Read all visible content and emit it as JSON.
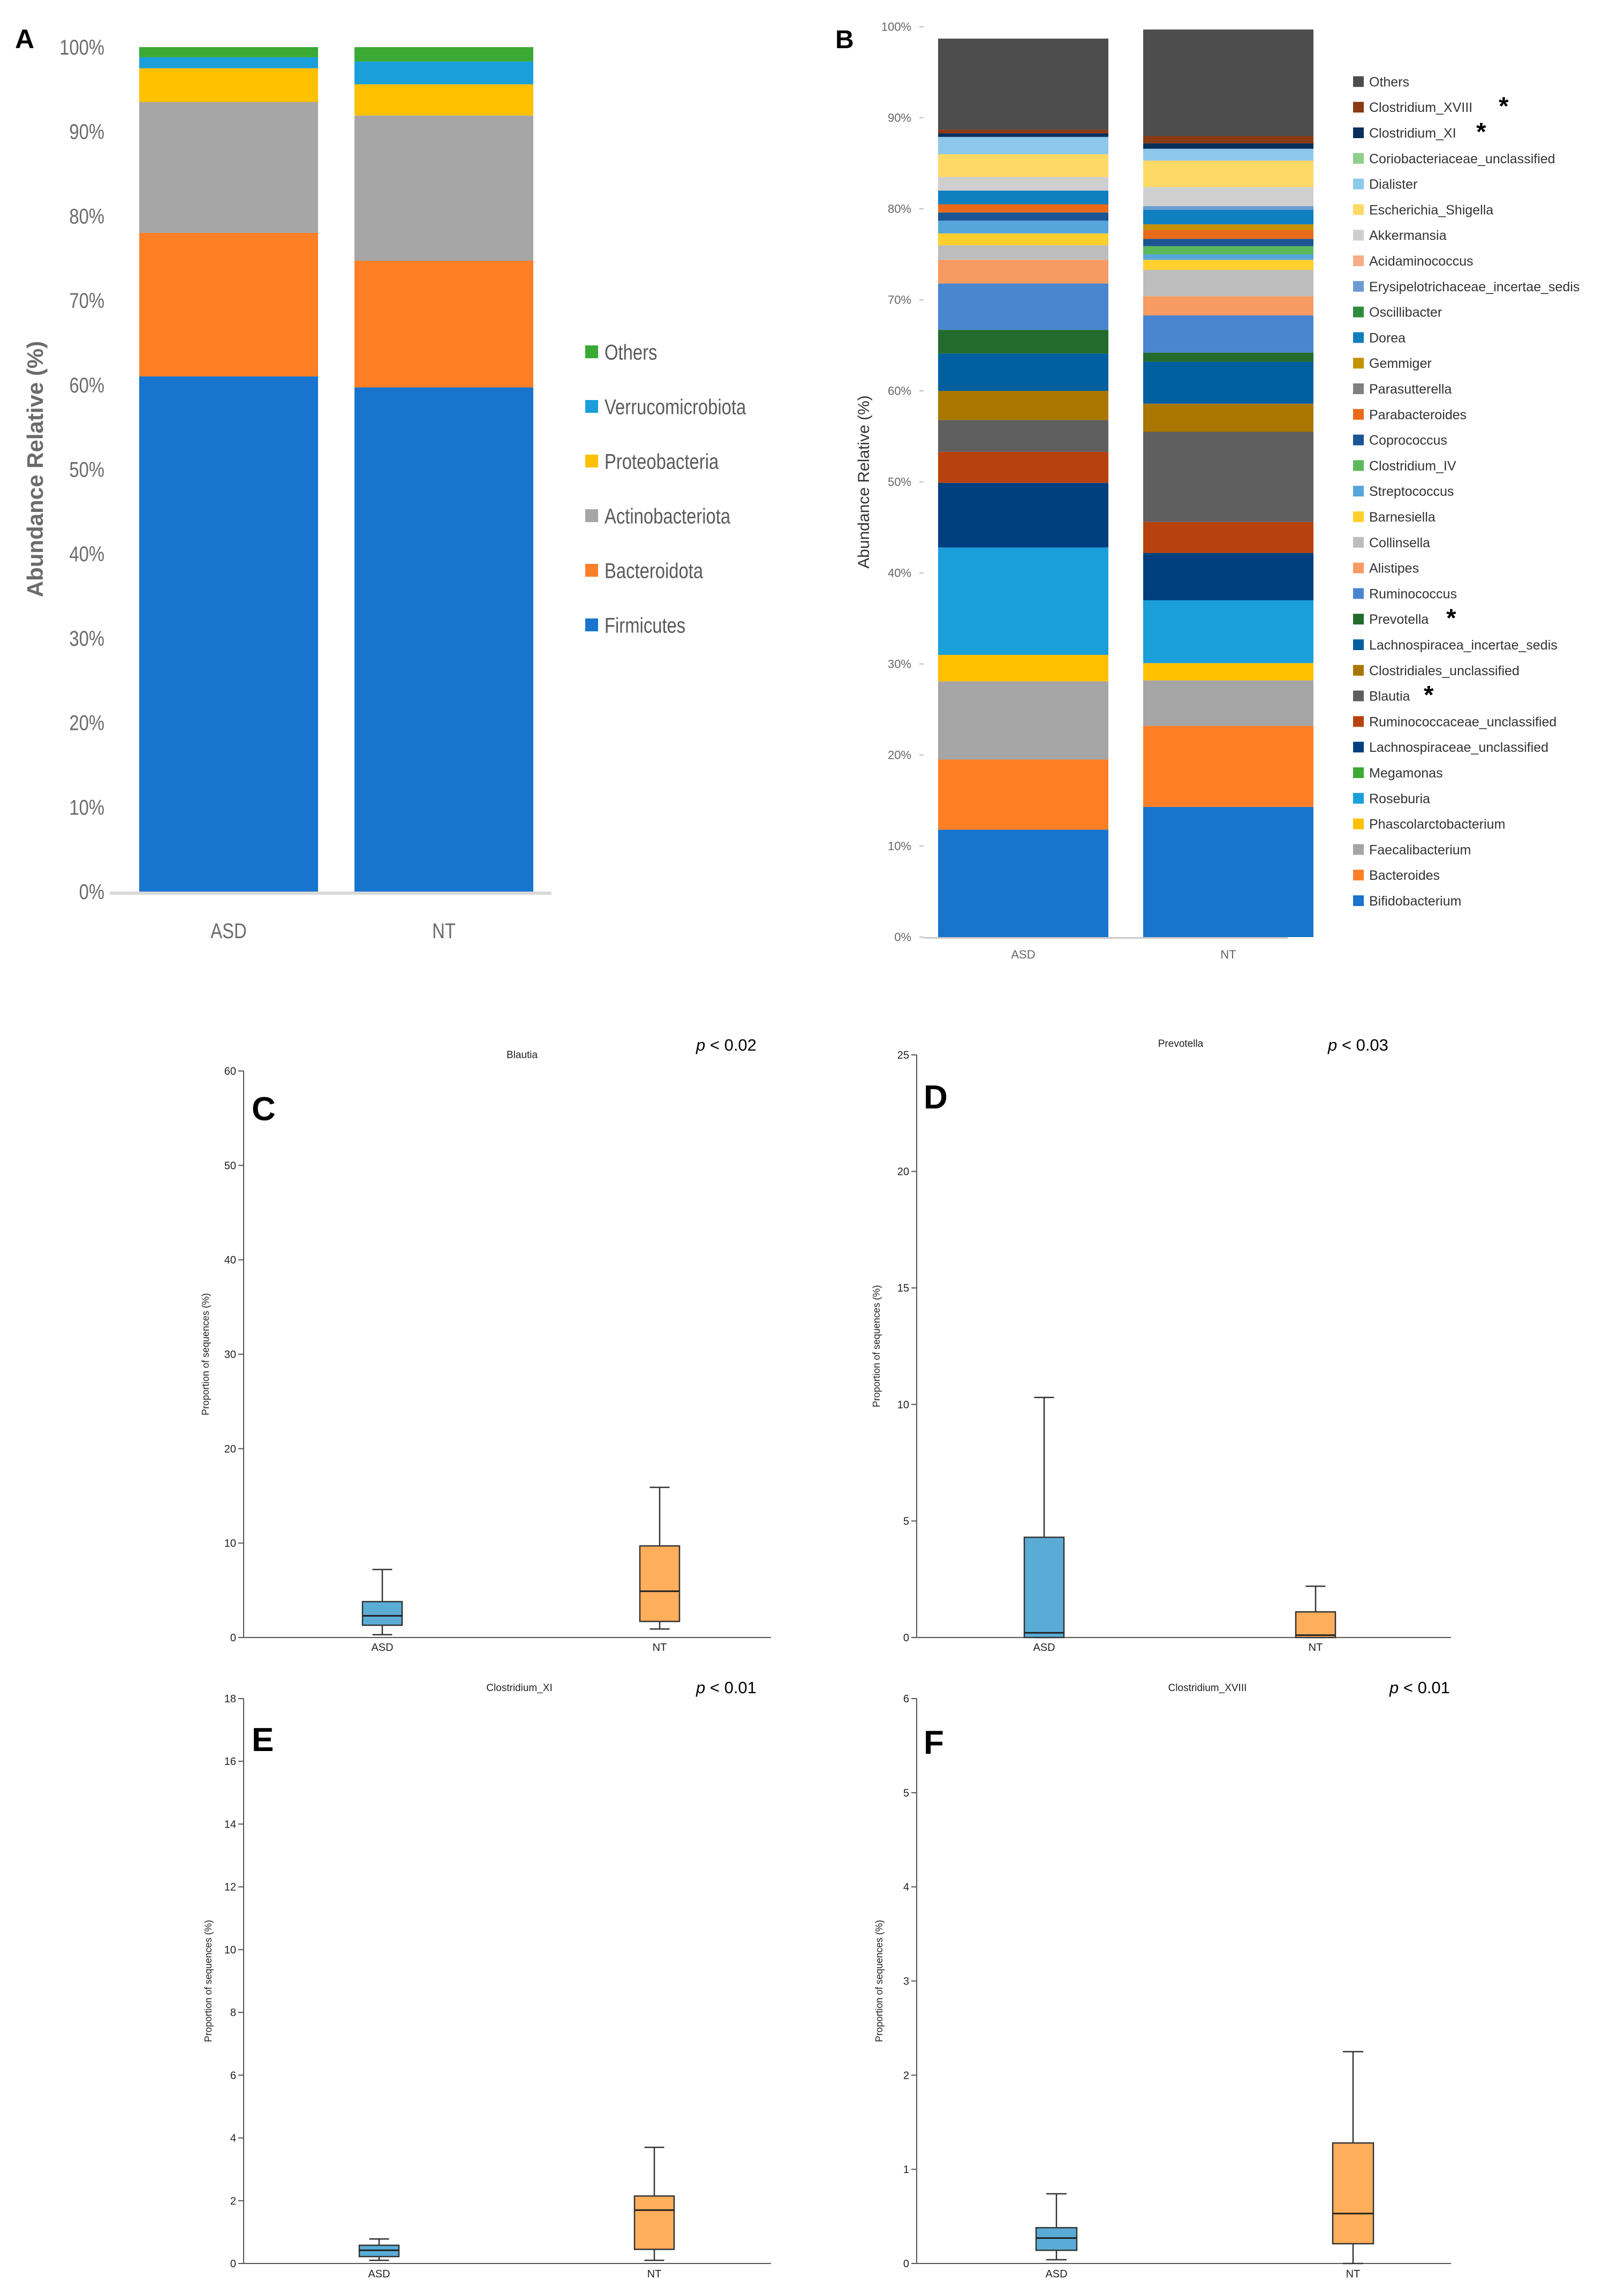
{
  "chart_data": [
    {
      "id": "A",
      "panel_label": "A",
      "type": "bar",
      "stacked": true,
      "ylabel": "Abundance Relative (%)",
      "ylim": [
        0,
        100
      ],
      "yticks": [
        0,
        10,
        20,
        30,
        40,
        50,
        60,
        70,
        80,
        90,
        100
      ],
      "ytick_labels": [
        "0%",
        "10%",
        "20%",
        "30%",
        "40%",
        "50%",
        "60%",
        "70%",
        "80%",
        "90%",
        "100%"
      ],
      "categories": [
        "ASD",
        "NT"
      ],
      "legend_position": "right",
      "series": [
        {
          "name": "Firmicutes",
          "color": "#1874cd",
          "values": [
            61.0,
            59.7
          ]
        },
        {
          "name": "Bacteroidota",
          "color": "#ff7f27",
          "values": [
            17.0,
            15.0
          ]
        },
        {
          "name": "Actinobacteriota",
          "color": "#a6a6a6",
          "values": [
            15.5,
            17.2
          ]
        },
        {
          "name": "Proteobacteria",
          "color": "#ffc000",
          "values": [
            4.0,
            3.7
          ]
        },
        {
          "name": "Verrucomicrobiota",
          "color": "#1a9fdb",
          "values": [
            1.3,
            2.7
          ]
        },
        {
          "name": "Others",
          "color": "#3aaa35",
          "values": [
            1.2,
            1.7
          ]
        }
      ]
    },
    {
      "id": "B",
      "panel_label": "B",
      "type": "bar",
      "stacked": true,
      "ylabel": "Abundance Relative (%)",
      "ylim": [
        0,
        100
      ],
      "yticks": [
        0,
        10,
        20,
        30,
        40,
        50,
        60,
        70,
        80,
        90,
        100
      ],
      "ytick_labels": [
        "0%",
        "10%",
        "20%",
        "30%",
        "40%",
        "50%",
        "60%",
        "70%",
        "80%",
        "90%",
        "100%"
      ],
      "categories": [
        "ASD",
        "NT"
      ],
      "legend_position": "right",
      "significance_marker": "*",
      "series": [
        {
          "name": "Bifidobacterium",
          "color": "#1874cd",
          "values": [
            11.8,
            14.3
          ],
          "starred": false
        },
        {
          "name": "Bacteroides",
          "color": "#ff7f27",
          "values": [
            7.7,
            8.9
          ],
          "starred": false
        },
        {
          "name": "Faecalibacterium",
          "color": "#a5a5a5",
          "values": [
            8.6,
            5.0
          ],
          "starred": false
        },
        {
          "name": "Phascolarctobacterium",
          "color": "#ffc000",
          "values": [
            2.9,
            1.9
          ],
          "starred": false
        },
        {
          "name": "Roseburia",
          "color": "#1a9fdb",
          "values": [
            11.8,
            6.9
          ],
          "starred": false
        },
        {
          "name": "Megamonas",
          "color": "#3aaa35",
          "values": [
            0.0,
            0.0
          ],
          "starred": false
        },
        {
          "name": "Lachnospiraceae_unclassified",
          "color": "#003f7f",
          "values": [
            7.1,
            5.2
          ],
          "starred": false
        },
        {
          "name": "Ruminococcaceae_unclassified",
          "color": "#b8420d",
          "values": [
            3.4,
            3.4
          ],
          "starred": false
        },
        {
          "name": "Blautia",
          "color": "#5f5f5f",
          "values": [
            3.5,
            9.9
          ],
          "starred": true
        },
        {
          "name": "Clostridiales_unclassified",
          "color": "#a97700",
          "values": [
            3.2,
            3.1
          ],
          "starred": false
        },
        {
          "name": "Lachnospiracea_incertae_sedis",
          "color": "#005f9f",
          "values": [
            4.1,
            4.6
          ],
          "starred": false
        },
        {
          "name": "Prevotella",
          "color": "#226b2d",
          "values": [
            2.6,
            1.0
          ],
          "starred": true
        },
        {
          "name": "Ruminococcus",
          "color": "#4a86d0",
          "values": [
            5.1,
            4.1
          ],
          "starred": false
        },
        {
          "name": "Alistipes",
          "color": "#f79b62",
          "values": [
            2.6,
            2.1
          ],
          "starred": false
        },
        {
          "name": "Collinsella",
          "color": "#bdbdbd",
          "values": [
            1.6,
            2.9
          ],
          "starred": false
        },
        {
          "name": "Barnesiella",
          "color": "#ffd02d",
          "values": [
            1.3,
            1.1
          ],
          "starred": false
        },
        {
          "name": "Streptococcus",
          "color": "#56a6d9",
          "values": [
            1.4,
            0.6
          ],
          "starred": false
        },
        {
          "name": "Clostridium_IV",
          "color": "#5cb85c",
          "values": [
            0.0,
            0.9
          ],
          "starred": false
        },
        {
          "name": "Coprococcus",
          "color": "#1b5593",
          "values": [
            0.9,
            0.8
          ],
          "starred": false
        },
        {
          "name": "Parabacteroides",
          "color": "#ea6a1a",
          "values": [
            0.9,
            1.0
          ],
          "starred": false
        },
        {
          "name": "Parasutterella",
          "color": "#7f7f7f",
          "values": [
            0.0,
            0.0
          ],
          "starred": false
        },
        {
          "name": "Gemmiger",
          "color": "#c59100",
          "values": [
            0.0,
            0.6
          ],
          "starred": false
        },
        {
          "name": "Dorea",
          "color": "#0f7fc0",
          "values": [
            1.5,
            1.6
          ],
          "starred": false
        },
        {
          "name": "Oscillibacter",
          "color": "#2f8a3b",
          "values": [
            0.0,
            0.0
          ],
          "starred": false
        },
        {
          "name": "Erysipelotrichaceae_incertae_sedis",
          "color": "#6c9bd2",
          "values": [
            0.0,
            0.4
          ],
          "starred": false
        },
        {
          "name": "Acidaminococcus",
          "color": "#f4ad87",
          "values": [
            0.0,
            0.0
          ],
          "starred": false
        },
        {
          "name": "Akkermansia",
          "color": "#cfcfcf",
          "values": [
            1.5,
            2.1
          ],
          "starred": false
        },
        {
          "name": "Escherichia_Shigella",
          "color": "#ffd966",
          "values": [
            2.5,
            2.9
          ],
          "starred": false
        },
        {
          "name": "Dialister",
          "color": "#8dc8ea",
          "values": [
            1.9,
            1.3
          ],
          "starred": false
        },
        {
          "name": "Coriobacteriaceae_unclassified",
          "color": "#8fce8a",
          "values": [
            0.0,
            0.0
          ],
          "starred": false
        },
        {
          "name": "Clostridium_XI",
          "color": "#0a2f5c",
          "values": [
            0.4,
            0.6
          ],
          "starred": true
        },
        {
          "name": "Clostridium_XVIII",
          "color": "#8a3a14",
          "values": [
            0.4,
            0.8
          ],
          "starred": true
        },
        {
          "name": "Others",
          "color": "#4d4d4d",
          "values": [
            10.0,
            11.7
          ],
          "starred": false
        }
      ]
    },
    {
      "id": "C",
      "panel_label": "C",
      "type": "box",
      "title": "Blautia",
      "pvalue_p": "p",
      "pvalue_rest": " < 0.02",
      "ylabel": "Proportion of sequences (%)",
      "ylim": [
        0,
        60
      ],
      "yticks": [
        0,
        10,
        20,
        30,
        40,
        50,
        60
      ],
      "categories": [
        "ASD",
        "NT"
      ],
      "groups": [
        {
          "name": "ASD",
          "color": "#5aacd6",
          "min": 0.3,
          "q1": 1.3,
          "median": 2.3,
          "q3": 3.8,
          "max": 7.2
        },
        {
          "name": "NT",
          "color": "#ffae5c",
          "min": 0.9,
          "q1": 1.7,
          "median": 4.9,
          "q3": 9.7,
          "max": 15.9
        }
      ]
    },
    {
      "id": "D",
      "panel_label": "D",
      "type": "box",
      "title": "Prevotella",
      "pvalue_p": "p",
      "pvalue_rest": " < 0.03",
      "ylabel": "Proportion of sequences (%)",
      "ylim": [
        0,
        25
      ],
      "yticks": [
        0,
        5,
        10,
        15,
        20,
        25
      ],
      "categories": [
        "ASD",
        "NT"
      ],
      "groups": [
        {
          "name": "ASD",
          "color": "#5aacd6",
          "min": 0.0,
          "q1": 0.0,
          "median": 0.2,
          "q3": 4.3,
          "max": 10.3
        },
        {
          "name": "NT",
          "color": "#ffae5c",
          "min": 0.0,
          "q1": 0.0,
          "median": 0.1,
          "q3": 1.1,
          "max": 2.2
        }
      ]
    },
    {
      "id": "E",
      "panel_label": "E",
      "type": "box",
      "title": "Clostridium_XI",
      "pvalue_p": "p",
      "pvalue_rest": " < 0.01",
      "ylabel": "Proportion of sequences (%)",
      "ylim": [
        0,
        18
      ],
      "yticks": [
        0,
        2,
        4,
        6,
        8,
        10,
        12,
        14,
        16,
        18
      ],
      "categories": [
        "ASD",
        "NT"
      ],
      "groups": [
        {
          "name": "ASD",
          "color": "#5aacd6",
          "min": 0.1,
          "q1": 0.22,
          "median": 0.42,
          "q3": 0.58,
          "max": 0.78
        },
        {
          "name": "NT",
          "color": "#ffae5c",
          "min": 0.1,
          "q1": 0.45,
          "median": 1.7,
          "q3": 2.15,
          "max": 3.7
        }
      ]
    },
    {
      "id": "F",
      "panel_label": "F",
      "type": "box",
      "title": "Clostridium_XVIII",
      "pvalue_p": "p",
      "pvalue_rest": " < 0.01",
      "ylabel": "Proportion of sequences (%)",
      "ylim": [
        0,
        6
      ],
      "yticks": [
        0,
        1,
        2,
        3,
        4,
        5,
        6
      ],
      "categories": [
        "ASD",
        "NT"
      ],
      "groups": [
        {
          "name": "ASD",
          "color": "#5aacd6",
          "min": 0.04,
          "q1": 0.14,
          "median": 0.27,
          "q3": 0.38,
          "max": 0.74
        },
        {
          "name": "NT",
          "color": "#ffae5c",
          "min": 0.0,
          "q1": 0.21,
          "median": 0.53,
          "q3": 1.28,
          "max": 2.25
        }
      ]
    }
  ]
}
